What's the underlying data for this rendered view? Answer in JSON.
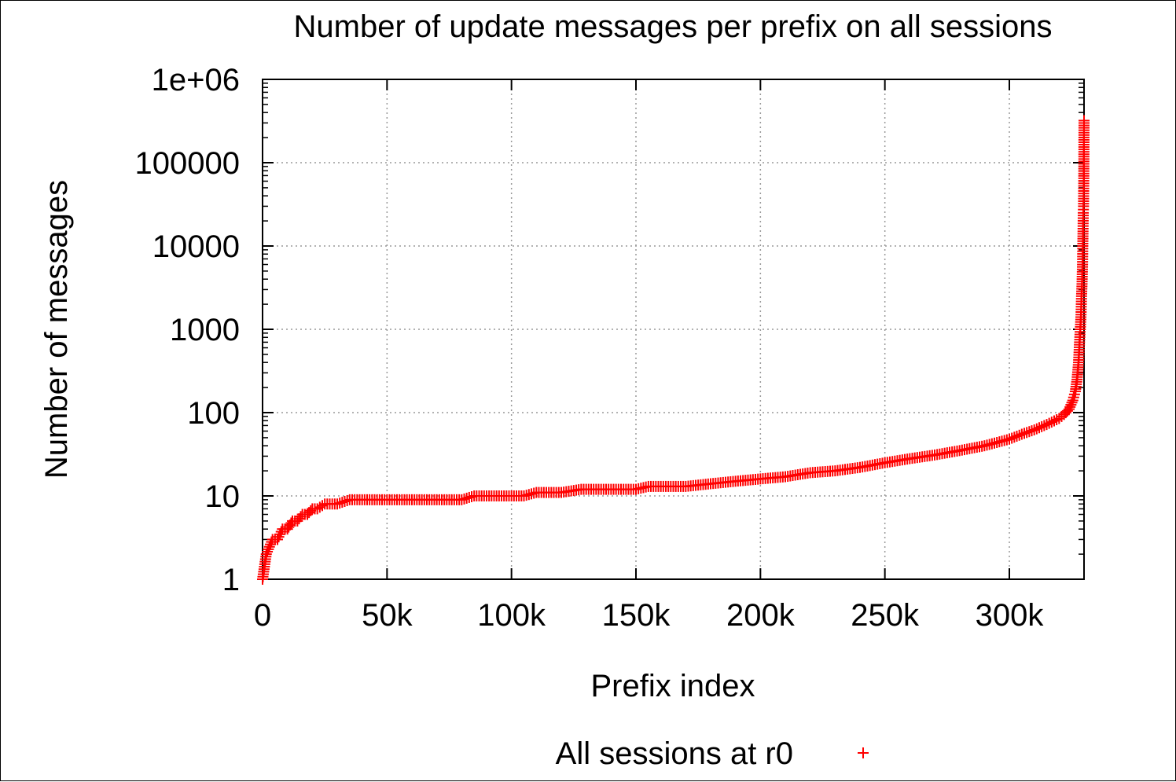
{
  "chart_data": {
    "type": "scatter",
    "title": "Number of update messages per prefix on all sessions",
    "xlabel": "Prefix index",
    "ylabel": "Number of messages",
    "xlim": [
      0,
      330000
    ],
    "ylim": [
      1,
      1000000
    ],
    "yscale": "log",
    "grid": true,
    "legend_position": "bottom",
    "x_ticks": [
      {
        "value": 0,
        "label": "0"
      },
      {
        "value": 50000,
        "label": "50k"
      },
      {
        "value": 100000,
        "label": "100k"
      },
      {
        "value": 150000,
        "label": "150k"
      },
      {
        "value": 200000,
        "label": "200k"
      },
      {
        "value": 250000,
        "label": "250k"
      },
      {
        "value": 300000,
        "label": "300k"
      }
    ],
    "y_ticks": [
      {
        "value": 1,
        "label": "1"
      },
      {
        "value": 10,
        "label": "10"
      },
      {
        "value": 100,
        "label": "100"
      },
      {
        "value": 1000,
        "label": "1000"
      },
      {
        "value": 10000,
        "label": "10000"
      },
      {
        "value": 100000,
        "label": "100000"
      },
      {
        "value": 1000000,
        "label": "1e+06"
      }
    ],
    "series": [
      {
        "name": "All sessions at r0",
        "color": "#ff0000",
        "marker": "plus",
        "points": [
          [
            0,
            1
          ],
          [
            1500,
            2
          ],
          [
            4000,
            3
          ],
          [
            6000,
            3
          ],
          [
            8000,
            4
          ],
          [
            10000,
            4
          ],
          [
            12000,
            5
          ],
          [
            14000,
            5
          ],
          [
            16000,
            6
          ],
          [
            18000,
            6
          ],
          [
            20000,
            7
          ],
          [
            22000,
            7
          ],
          [
            25000,
            8
          ],
          [
            30000,
            8
          ],
          [
            35000,
            9
          ],
          [
            40000,
            9
          ],
          [
            50000,
            9
          ],
          [
            60000,
            9
          ],
          [
            70000,
            9
          ],
          [
            80000,
            9
          ],
          [
            85000,
            10
          ],
          [
            95000,
            10
          ],
          [
            105000,
            10
          ],
          [
            110000,
            11
          ],
          [
            120000,
            11
          ],
          [
            128000,
            12
          ],
          [
            140000,
            12
          ],
          [
            150000,
            12
          ],
          [
            155000,
            13
          ],
          [
            170000,
            13
          ],
          [
            180000,
            14
          ],
          [
            190000,
            15
          ],
          [
            200000,
            16
          ],
          [
            210000,
            17
          ],
          [
            220000,
            19
          ],
          [
            230000,
            20
          ],
          [
            240000,
            22
          ],
          [
            250000,
            25
          ],
          [
            260000,
            28
          ],
          [
            270000,
            31
          ],
          [
            280000,
            35
          ],
          [
            290000,
            40
          ],
          [
            300000,
            48
          ],
          [
            305000,
            55
          ],
          [
            310000,
            62
          ],
          [
            315000,
            72
          ],
          [
            320000,
            85
          ],
          [
            322000,
            95
          ],
          [
            324000,
            110
          ],
          [
            325500,
            140
          ],
          [
            326500,
            180
          ],
          [
            327200,
            250
          ],
          [
            327800,
            400
          ],
          [
            328200,
            700
          ],
          [
            328500,
            1000
          ],
          [
            328800,
            1500
          ],
          [
            329000,
            2500
          ],
          [
            329200,
            3500
          ],
          [
            329400,
            6000
          ],
          [
            329500,
            10000
          ],
          [
            329600,
            15000
          ],
          [
            329700,
            25000
          ],
          [
            329800,
            30000
          ],
          [
            329900,
            65000
          ],
          [
            330000,
            320000
          ]
        ]
      }
    ]
  }
}
